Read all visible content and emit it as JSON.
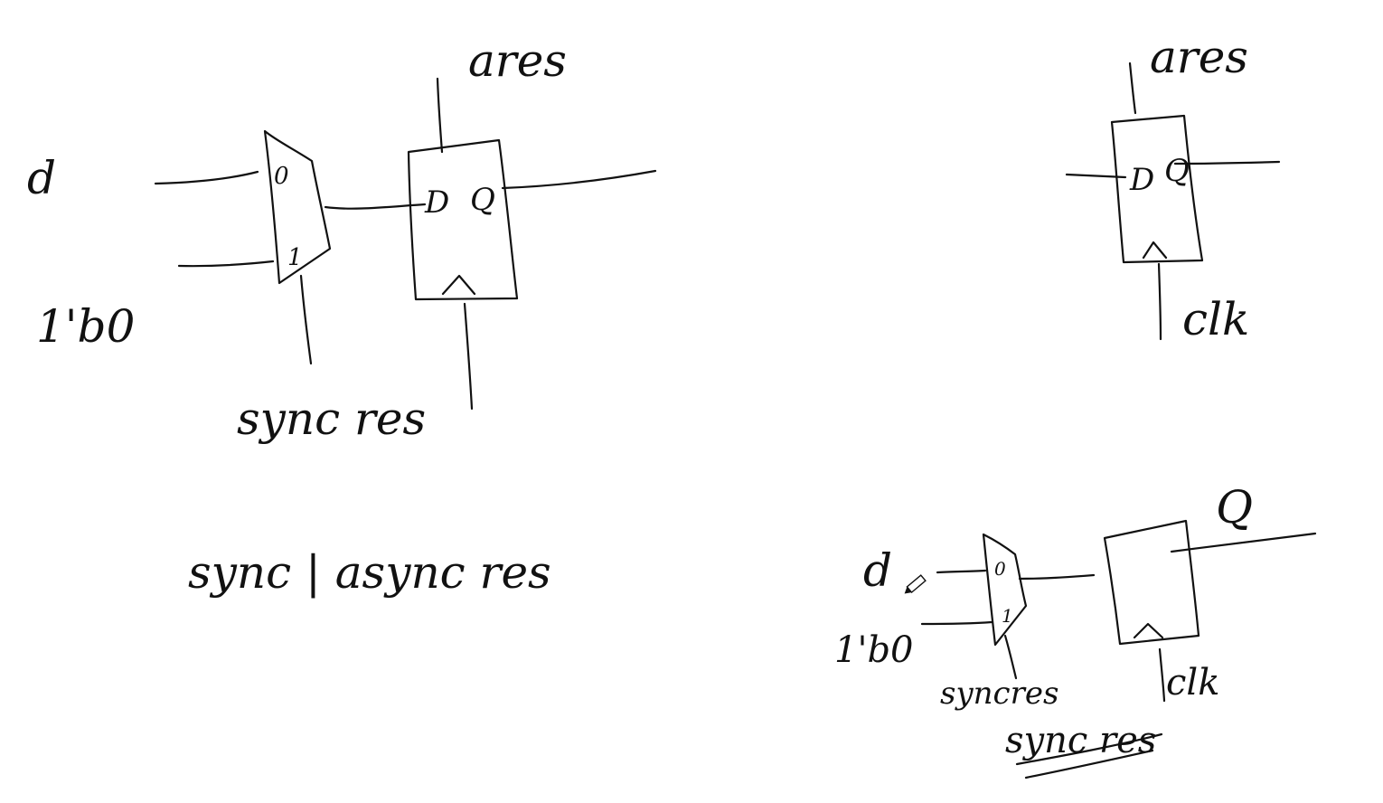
{
  "diagram_left": {
    "input_d": "d",
    "input_const": "1'b0",
    "mux_pin_0": "0",
    "mux_pin_1": "1",
    "mux_select": "sync res",
    "ff_reset": "ares",
    "ff_pin_d": "D",
    "ff_pin_q": "Q"
  },
  "diagram_top_right": {
    "ff_reset": "ares",
    "ff_pin_d": "D",
    "ff_pin_q": "Q",
    "clock": "clk"
  },
  "center_note": "sync | async res",
  "diagram_bottom_right": {
    "input_d": "d",
    "input_const": "1'b0",
    "mux_pin_0": "0",
    "mux_pin_1": "1",
    "mux_select": "syncres",
    "ff_output": "Q",
    "clock": "clk",
    "caption": "sync res"
  },
  "colors": {
    "background": "#ffffff",
    "ink": "#111111"
  },
  "icons": [
    "pencil-cursor-icon"
  ]
}
